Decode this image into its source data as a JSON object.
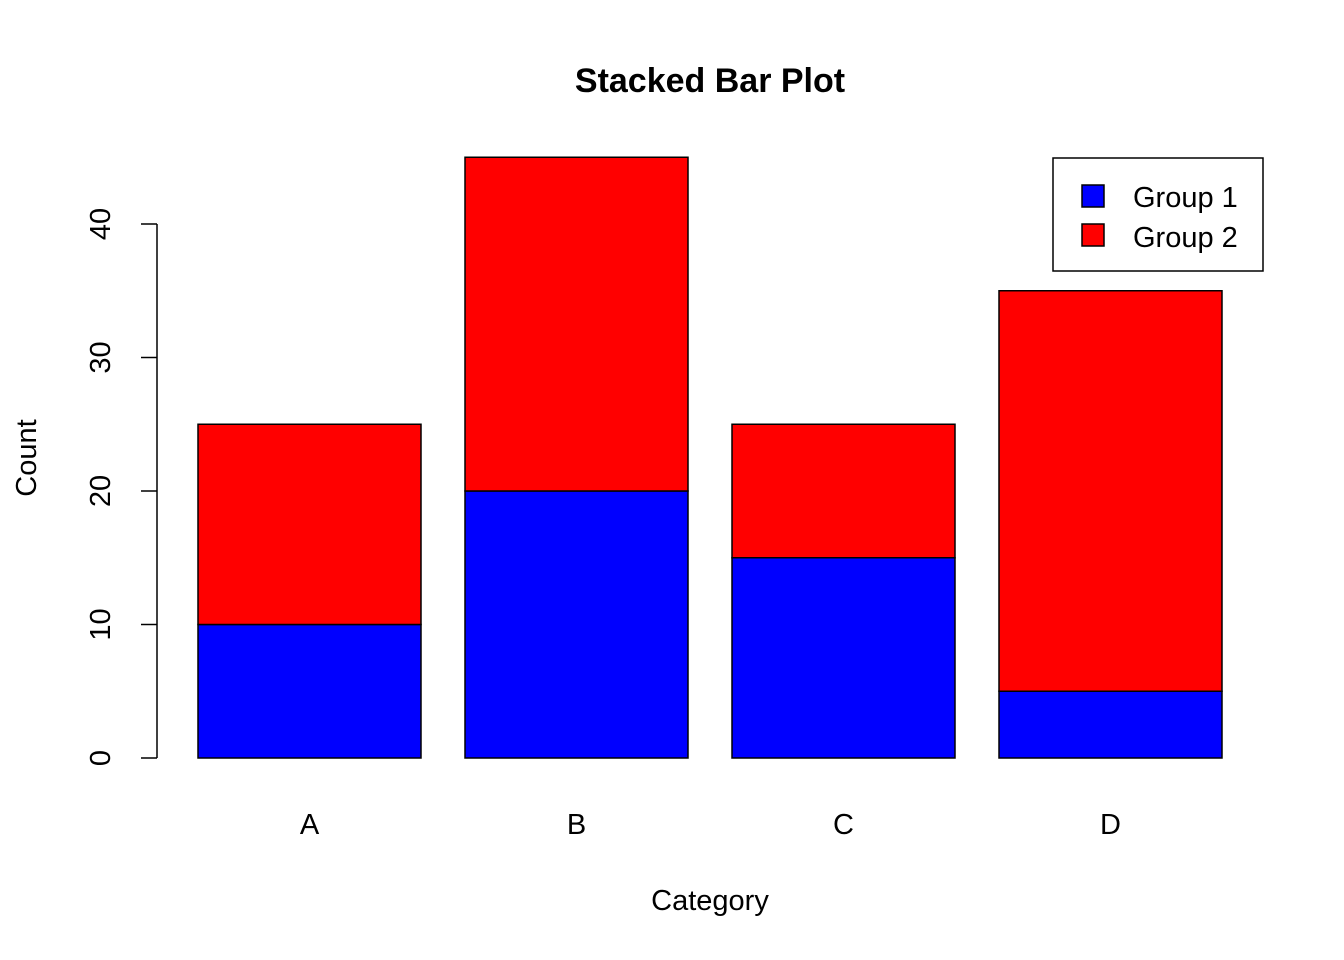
{
  "chart_data": {
    "type": "bar",
    "stacked": true,
    "title": "Stacked Bar Plot",
    "xlabel": "Category",
    "ylabel": "Count",
    "categories": [
      "A",
      "B",
      "C",
      "D"
    ],
    "series": [
      {
        "name": "Group 1",
        "color": "#0000ff",
        "values": [
          10,
          20,
          15,
          5
        ]
      },
      {
        "name": "Group 2",
        "color": "#ff0000",
        "values": [
          15,
          25,
          10,
          30
        ]
      }
    ],
    "yticks": [
      0,
      10,
      20,
      30,
      40
    ],
    "ylim": [
      0,
      45
    ],
    "grid": false,
    "legend_position": "top-right"
  }
}
